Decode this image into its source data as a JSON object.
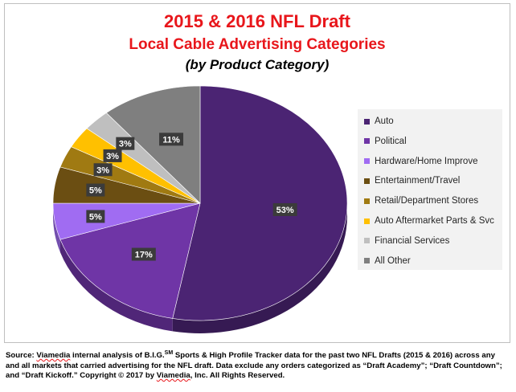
{
  "chart_data": {
    "type": "pie",
    "title": "2015 & 2016 NFL Draft",
    "subtitle": "Local Cable Advertising Categories",
    "subtitle2": "(by Product Category)",
    "legend_placement": "right",
    "slices": [
      {
        "label": "Auto",
        "value": 53,
        "display": "53%",
        "color": "#4b2473"
      },
      {
        "label": "Political",
        "value": 17,
        "display": "17%",
        "color": "#6f35a6"
      },
      {
        "label": "Hardware/Home Improve",
        "value": 5,
        "display": "5%",
        "color": "#a06cf2"
      },
      {
        "label": "Entertainment/Travel",
        "value": 5,
        "display": "5%",
        "color": "#6b4e12"
      },
      {
        "label": "Retail/Department Stores",
        "value": 3,
        "display": "3%",
        "color": "#a07a12"
      },
      {
        "label": "Auto Aftermarket Parts & Svc",
        "value": 3,
        "display": "3%",
        "color": "#ffc000"
      },
      {
        "label": "Financial Services",
        "value": 3,
        "display": "3%",
        "color": "#bfbfbf"
      },
      {
        "label": "All Other",
        "value": 11,
        "display": "11%",
        "color": "#7f7f7f"
      }
    ]
  },
  "source": {
    "prefix": "Source: ",
    "brand": "Viamedia",
    "middle": " internal analysis of B.I.G.",
    "sm": "SM",
    "rest": "  Sports & High Profile Tracker data for the past two NFL Drafts (2015 & 2016) across any and all markets that carried advertising for the NFL draft. Data exclude any orders categorized as “Draft Academy”; “Draft Countdown”; and “Draft Kickoff.” Copyright © 2017 by ",
    "brand2": "Viamedia",
    "suffix": ", Inc. All Rights Reserved."
  }
}
